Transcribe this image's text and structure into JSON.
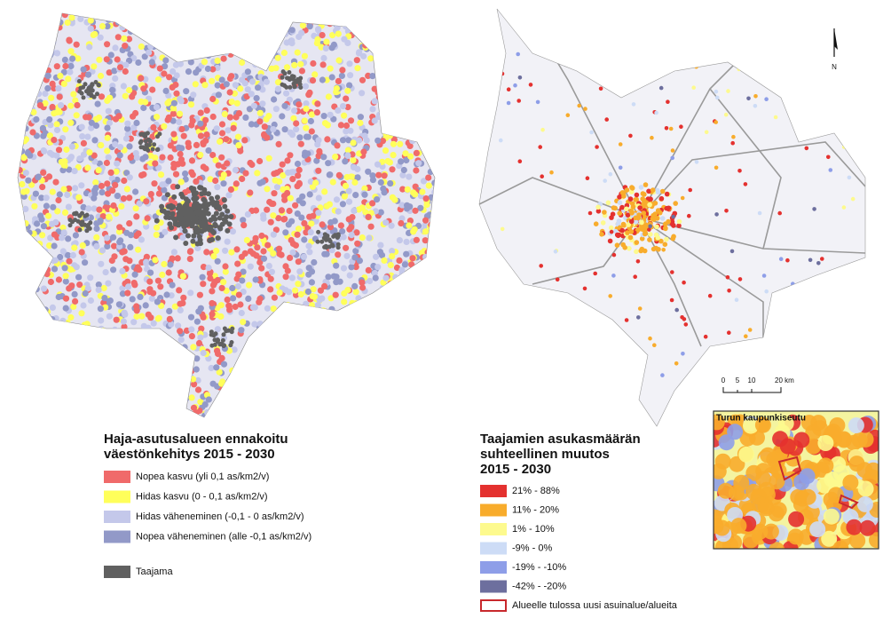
{
  "left_legend": {
    "title_lines": [
      "Haja-asutusalueen ennakoitu",
      "väestönkehitys 2015 - 2030"
    ],
    "items": [
      {
        "label": "Nopea kasvu (yli 0,1 as/km2/v)",
        "color": "#f06a6a"
      },
      {
        "label": "Hidas kasvu (0 - 0,1 as/km2/v)",
        "color": "#ffff5a"
      },
      {
        "label": "Hidas väheneminen (-0,1 - 0 as/km2/v)",
        "color": "#c4c8ea"
      },
      {
        "label": "Nopea väheneminen (alle -0,1 as/km2/v)",
        "color": "#9299c8"
      }
    ],
    "urban": {
      "label": "Taajama",
      "color": "#606060"
    }
  },
  "right_legend": {
    "title_lines": [
      "Taajamien asukasmäärän",
      "suhteellinen muutos",
      "2015 - 2030"
    ],
    "items": [
      {
        "label": "21% - 88%",
        "color": "#e4312f"
      },
      {
        "label": "11% - 20%",
        "color": "#f8ac2c"
      },
      {
        "label": "1% - 10%",
        "color": "#fdfa8e"
      },
      {
        "label": "-9% - 0%",
        "color": "#cddcf6"
      },
      {
        "label": "-19% - -10%",
        "color": "#8e9ee8"
      },
      {
        "label": "-42% - -20%",
        "color": "#6d6f9e"
      }
    ],
    "new_area": {
      "label": "Alueelle tulossa uusi asuinalue/alueita",
      "color": "#c8282c"
    }
  },
  "scale_bar": [
    "0",
    "5",
    "10",
    "20 km"
  ],
  "north_label": "N",
  "inset_title": "Turun kaupunkiseutu"
}
